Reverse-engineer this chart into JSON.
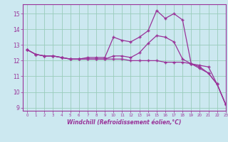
{
  "title": "",
  "xlabel": "Windchill (Refroidissement éolien,°C)",
  "ylabel": "",
  "bg_color": "#cce8f0",
  "grid_color": "#99ccbb",
  "line_color": "#993399",
  "x": [
    0,
    1,
    2,
    3,
    4,
    5,
    6,
    7,
    8,
    9,
    10,
    11,
    12,
    13,
    14,
    15,
    16,
    17,
    18,
    19,
    20,
    21,
    22,
    23
  ],
  "line1": [
    12.7,
    12.4,
    12.3,
    12.3,
    12.2,
    12.1,
    12.1,
    12.2,
    12.2,
    12.2,
    13.5,
    13.3,
    13.2,
    13.5,
    13.9,
    15.2,
    14.7,
    15.0,
    14.6,
    11.8,
    11.6,
    11.2,
    10.5,
    9.2
  ],
  "line2": [
    12.7,
    12.4,
    12.3,
    12.3,
    12.2,
    12.1,
    12.1,
    12.1,
    12.1,
    12.1,
    12.1,
    12.1,
    12.0,
    12.0,
    12.0,
    12.0,
    11.9,
    11.9,
    11.9,
    11.8,
    11.7,
    11.6,
    10.5,
    9.2
  ],
  "line3": [
    12.7,
    12.4,
    12.3,
    12.3,
    12.2,
    12.1,
    12.1,
    12.1,
    12.1,
    12.1,
    12.3,
    12.3,
    12.2,
    12.5,
    13.1,
    13.6,
    13.5,
    13.2,
    12.1,
    11.8,
    11.5,
    11.2,
    10.5,
    9.2
  ],
  "ylim": [
    8.8,
    15.6
  ],
  "yticks": [
    9,
    10,
    11,
    12,
    13,
    14,
    15
  ],
  "xlim": [
    -0.5,
    23
  ]
}
